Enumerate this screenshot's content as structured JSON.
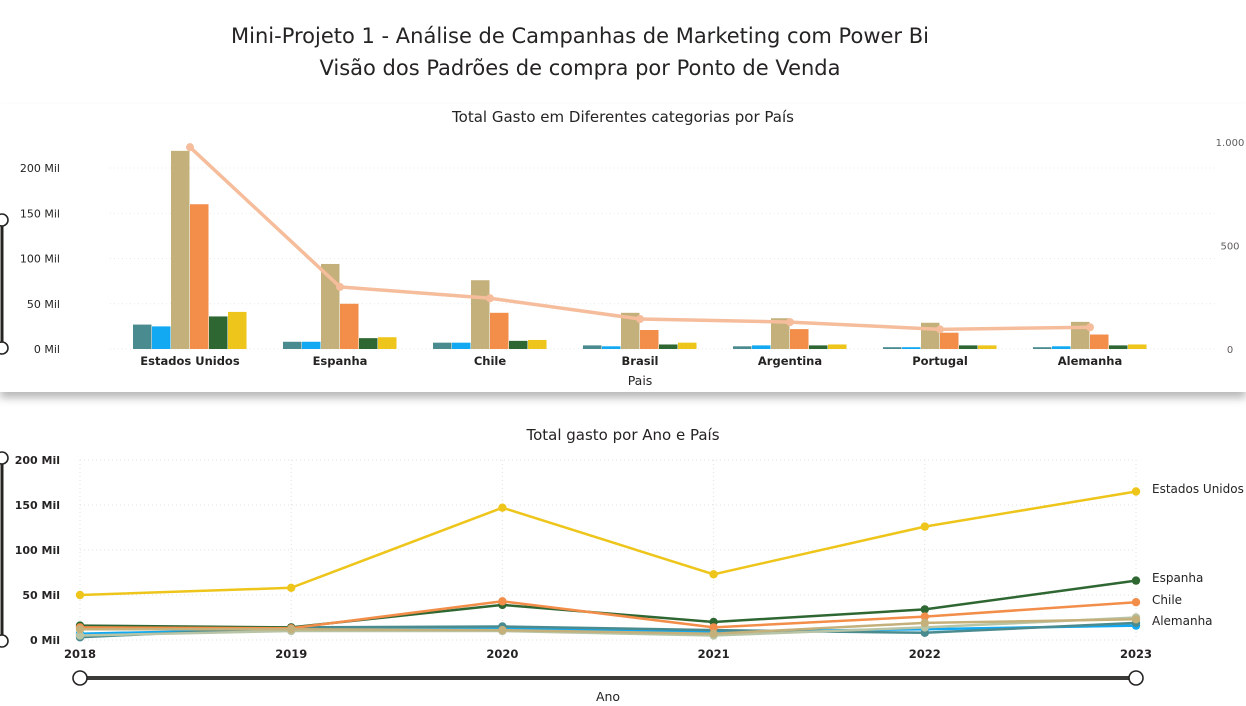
{
  "header": {
    "title_line1": "Mini-Projeto 1 - Análise de Campanhas de Marketing com Power Bi",
    "title_line2": "Visão dos Padrões de compra por Ponto de Venda"
  },
  "chart_data": [
    {
      "type": "bar",
      "title": "Total Gasto em Diferentes categorias por País",
      "xlabel": "Pais",
      "ylabel": "",
      "categories": [
        "Estados Unidos",
        "Espanha",
        "Chile",
        "Brasil",
        "Argentina",
        "Portugal",
        "Alemanha"
      ],
      "ylim": [
        0,
        220000
      ],
      "y_ticks": [
        0,
        50000,
        100000,
        150000,
        200000
      ],
      "y_tick_labels": [
        "0 Mil",
        "50 Mil",
        "100 Mil",
        "150 Mil",
        "200 Mil"
      ],
      "series": [
        {
          "color": "#4a8b8f",
          "values": [
            27000,
            8000,
            7000,
            4000,
            3000,
            2000,
            2000
          ]
        },
        {
          "color": "#12a9f2",
          "values": [
            25000,
            8000,
            7000,
            3000,
            4000,
            2000,
            3000
          ]
        },
        {
          "color": "#c4b07b",
          "values": [
            219000,
            94000,
            76000,
            40000,
            34000,
            29000,
            30000
          ]
        },
        {
          "color": "#f28e4a",
          "values": [
            160000,
            50000,
            40000,
            21000,
            22000,
            18000,
            16000
          ]
        },
        {
          "color": "#2f6733",
          "values": [
            36000,
            12000,
            9000,
            5000,
            4000,
            4000,
            4000
          ]
        },
        {
          "color": "#eec51a",
          "values": [
            41000,
            13000,
            10000,
            7000,
            5000,
            4000,
            5000
          ]
        }
      ],
      "line_series": {
        "color": "#f5bd9b",
        "axis": "secondary",
        "values": [
          975,
          300,
          245,
          145,
          130,
          95,
          105
        ]
      },
      "y2lim": [
        0,
        1000
      ],
      "y2_ticks": [
        0,
        500,
        1000
      ],
      "y2_tick_labels": [
        "0",
        "500",
        "1.000"
      ]
    },
    {
      "type": "line",
      "title": "Total gasto por Ano e País",
      "xlabel": "Ano",
      "ylabel": "",
      "x": [
        "2018",
        "2019",
        "2020",
        "2021",
        "2022",
        "2023"
      ],
      "ylim": [
        0,
        200000
      ],
      "y_ticks": [
        0,
        50000,
        100000,
        150000,
        200000
      ],
      "y_tick_labels": [
        "0 Mil",
        "50 Mil",
        "100 Mil",
        "150 Mil",
        "200 Mil"
      ],
      "series": [
        {
          "name": "Estados Unidos",
          "color": "#eec51a",
          "values": [
            50000,
            58000,
            147000,
            73000,
            126000,
            165000
          ],
          "label": true
        },
        {
          "name": "Espanha",
          "color": "#2f6733",
          "values": [
            16000,
            14000,
            39000,
            20000,
            34000,
            66000
          ],
          "label": true
        },
        {
          "name": "Chile",
          "color": "#f28e4a",
          "values": [
            14000,
            13000,
            43000,
            14000,
            26000,
            42000
          ],
          "label": true
        },
        {
          "name": "Alemanha",
          "color": "#c4b07b",
          "values": [
            12000,
            12000,
            11000,
            7000,
            19000,
            23000
          ],
          "label": true
        },
        {
          "color": "#12a9f2",
          "values": [
            7000,
            12000,
            13000,
            9000,
            12000,
            16000
          ],
          "label": false
        },
        {
          "color": "#4a8b8f",
          "values": [
            3000,
            14000,
            15000,
            11000,
            8000,
            19000
          ],
          "label": false
        },
        {
          "color": "#b8c4a6",
          "values": [
            5000,
            10000,
            10000,
            5000,
            14000,
            25000
          ],
          "label": false
        }
      ]
    }
  ]
}
